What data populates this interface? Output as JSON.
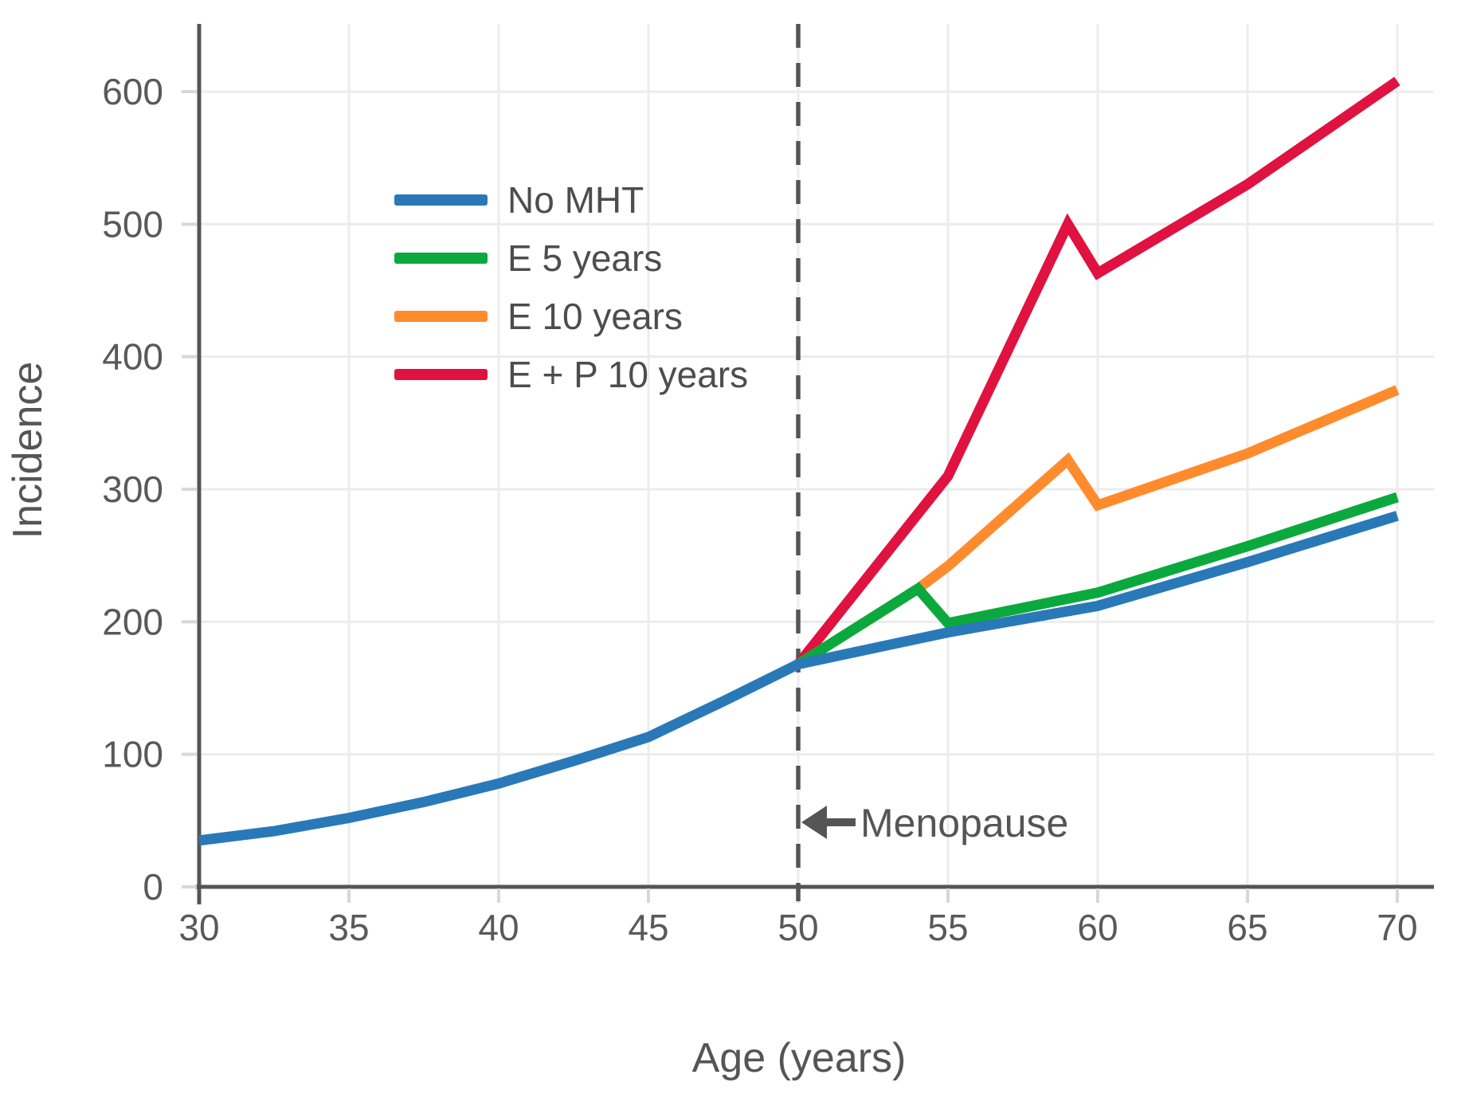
{
  "figure": {
    "ylabel": "Incidence",
    "xlabel": "Age (years)",
    "annotation_label": "Menopause"
  },
  "legend": {
    "items": [
      {
        "label": "No MHT",
        "color": "#2979b9"
      },
      {
        "label": "E 5 years",
        "color": "#0ba93d"
      },
      {
        "label": "E 10 years",
        "color": "#ff8b2d"
      },
      {
        "label": "E + P 10 years",
        "color": "#e01240"
      }
    ]
  },
  "chart_data": {
    "type": "line",
    "title": "",
    "xlabel": "Age (years)",
    "ylabel": "Incidence",
    "xlim": [
      30,
      71.2
    ],
    "ylim": [
      0,
      651
    ],
    "x_ticks": [
      30,
      35,
      40,
      45,
      50,
      55,
      60,
      65,
      70
    ],
    "y_ticks": [
      0,
      100,
      200,
      300,
      400,
      500,
      600
    ],
    "grid": true,
    "legend_position": "upper-left-inside",
    "vline": {
      "x": 50,
      "style": "dashed",
      "color": "#555555"
    },
    "annotations": [
      {
        "text": "Menopause",
        "arrow": "left",
        "x": 50,
        "y": 48
      }
    ],
    "series": [
      {
        "name": "No MHT",
        "color": "#2979b9",
        "points": [
          [
            30,
            35
          ],
          [
            32.5,
            42
          ],
          [
            35,
            52
          ],
          [
            37.5,
            64
          ],
          [
            40,
            78
          ],
          [
            42.5,
            95
          ],
          [
            45,
            113
          ],
          [
            47.5,
            140
          ],
          [
            50,
            168
          ],
          [
            55,
            192
          ],
          [
            60,
            212
          ],
          [
            65,
            245
          ],
          [
            70,
            280
          ]
        ]
      },
      {
        "name": "E 5 years",
        "color": "#0ba93d",
        "points": [
          [
            50,
            168
          ],
          [
            54,
            225
          ],
          [
            55,
            199
          ],
          [
            60,
            222
          ],
          [
            65,
            257
          ],
          [
            70,
            294
          ]
        ]
      },
      {
        "name": "E 10 years",
        "color": "#ff8b2d",
        "points": [
          [
            50,
            168
          ],
          [
            54,
            225
          ],
          [
            55,
            242
          ],
          [
            59,
            322
          ],
          [
            60,
            288
          ],
          [
            65,
            327
          ],
          [
            70,
            375
          ]
        ]
      },
      {
        "name": "E + P 10 years",
        "color": "#e01240",
        "points": [
          [
            50,
            168
          ],
          [
            55,
            310
          ],
          [
            59,
            500
          ],
          [
            60,
            463
          ],
          [
            65,
            530
          ],
          [
            70,
            608
          ]
        ]
      }
    ]
  }
}
